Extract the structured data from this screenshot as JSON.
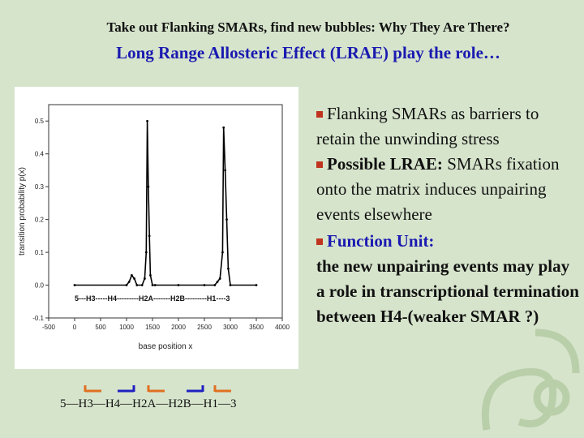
{
  "heading": {
    "title": "Take out Flanking SMARs,  find new bubbles: Why They Are There?",
    "subtitle": "Long Range Allosteric Effect (LRAE) play the role…"
  },
  "bullets": {
    "b1_text": "Flanking SMARs as barriers to retain the unwinding stress",
    "b2_label": "Possible LRAE:",
    "b2_text": " SMARs fixation onto the matrix induces unpairing events elsewhere",
    "b3_label": "Function Unit:",
    "b3_text": "the new unpairing events may play a role in transcriptional termination between H4-(weaker SMAR ?)"
  },
  "gene_order_label": "5—H3—H4—H2A—H2B—H1—3",
  "colors": {
    "accent": "#1a1ab0",
    "bullet": "#c0341f",
    "arrow_orange": "#e07020",
    "arrow_blue": "#2020c0"
  },
  "chart_data": {
    "type": "line",
    "xlabel": "base position x",
    "ylabel": "transition probability p(x)",
    "xlim": [
      -500,
      4000
    ],
    "ylim": [
      -0.1,
      0.55
    ],
    "x_ticks": [
      -500,
      0,
      500,
      1000,
      1500,
      2000,
      2500,
      3000,
      3500,
      4000
    ],
    "y_ticks": [
      -0.1,
      0.0,
      0.1,
      0.2,
      0.3,
      0.4,
      0.5
    ],
    "x_tick_labels": [
      "-500",
      "0",
      "500",
      "1000",
      "1500",
      "2000",
      "2500",
      "3000",
      "3500",
      "4000"
    ],
    "y_tick_labels": [
      "-0.1",
      "0.0",
      "0.1",
      "0.2",
      "0.3",
      "0.4",
      "0.5"
    ],
    "annotation": "5---H3-----H4---------H2A-------H2B---------H1----3",
    "series": [
      {
        "x": [
          0,
          1000,
          1050,
          1100,
          1150,
          1200,
          1300,
          1350,
          1380,
          1400,
          1420,
          1440,
          1460,
          1500,
          1550,
          2000,
          2500,
          2700,
          2750,
          2800,
          2850,
          2870,
          2900,
          2930,
          2960,
          3000,
          3500
        ],
        "y": [
          0.0,
          0.0,
          0.01,
          0.03,
          0.02,
          0.0,
          0.0,
          0.02,
          0.1,
          0.5,
          0.3,
          0.15,
          0.03,
          0.0,
          0.0,
          0.0,
          0.0,
          0.0,
          0.01,
          0.02,
          0.1,
          0.48,
          0.35,
          0.2,
          0.05,
          0.0,
          0.0
        ]
      }
    ]
  },
  "arrows": [
    {
      "dir": "left",
      "color": "orange"
    },
    {
      "dir": "right",
      "color": "blue"
    },
    {
      "dir": "left",
      "color": "orange"
    },
    {
      "dir": "right",
      "color": "blue"
    },
    {
      "dir": "left",
      "color": "orange"
    }
  ]
}
